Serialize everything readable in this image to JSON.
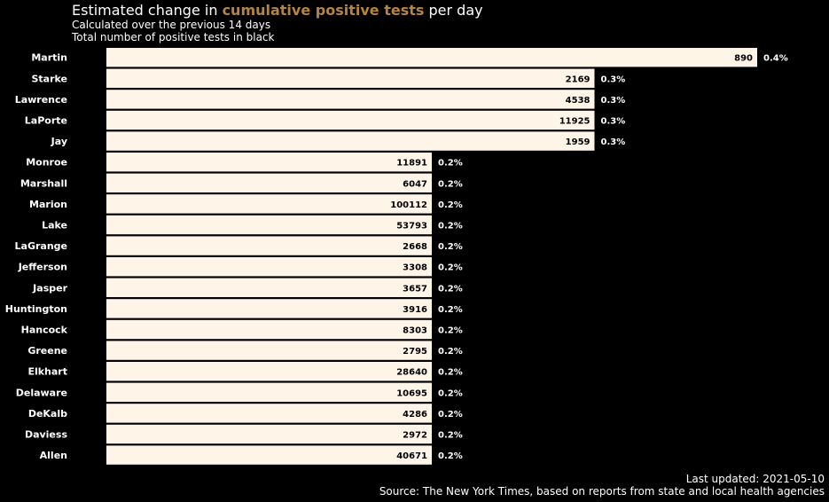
{
  "title": {
    "prefix": "Estimated change in",
    "highlight": "cumulative positive tests",
    "suffix": "per day",
    "highlight_color": "#b5853f"
  },
  "subtitle_lines": [
    "Calculated over the previous 14 days",
    "Total number of positive tests in black"
  ],
  "footer": {
    "updated": "Last updated: 2021-05-10",
    "source": "Source: The New York Times, based on reports from state and local health agencies"
  },
  "colors": {
    "background": "#000000",
    "bar": "#fff4e8",
    "bar_text": "#000000",
    "text": "#ffffff"
  },
  "chart_data": {
    "type": "bar",
    "orientation": "horizontal",
    "categories": [
      "Martin",
      "Starke",
      "Lawrence",
      "LaPorte",
      "Jay",
      "Monroe",
      "Marshall",
      "Marion",
      "Lake",
      "LaGrange",
      "Jefferson",
      "Jasper",
      "Huntington",
      "Hancock",
      "Greene",
      "Elkhart",
      "Delaware",
      "DeKalb",
      "Daviess",
      "Allen"
    ],
    "values": [
      0.4,
      0.3,
      0.3,
      0.3,
      0.3,
      0.2,
      0.2,
      0.2,
      0.2,
      0.2,
      0.2,
      0.2,
      0.2,
      0.2,
      0.2,
      0.2,
      0.2,
      0.2,
      0.2,
      0.2
    ],
    "value_labels": [
      "0.4%",
      "0.3%",
      "0.3%",
      "0.3%",
      "0.3%",
      "0.2%",
      "0.2%",
      "0.2%",
      "0.2%",
      "0.2%",
      "0.2%",
      "0.2%",
      "0.2%",
      "0.2%",
      "0.2%",
      "0.2%",
      "0.2%",
      "0.2%",
      "0.2%",
      "0.2%"
    ],
    "totals": [
      "890",
      "2169",
      "4538",
      "11925",
      "1959",
      "11891",
      "6047",
      "100112",
      "53793",
      "2668",
      "3308",
      "3657",
      "3916",
      "8303",
      "2795",
      "28640",
      "10695",
      "4286",
      "2972",
      "40671"
    ],
    "xlim": [
      0,
      0.4
    ],
    "grid": false,
    "legend": false
  }
}
